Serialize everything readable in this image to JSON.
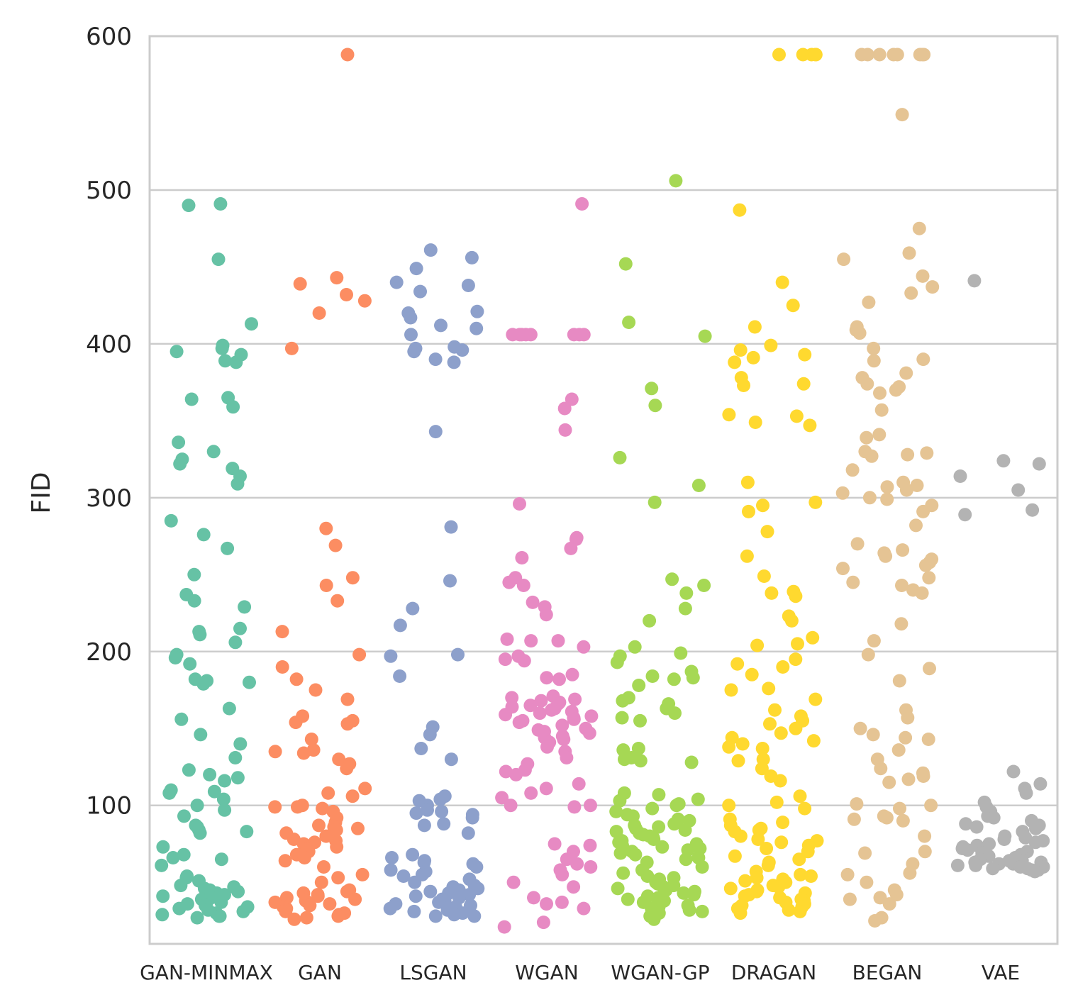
{
  "chart_data": {
    "type": "scatter",
    "subtype": "strip",
    "title": "",
    "xlabel": "",
    "ylabel": "FID",
    "ylim": [
      10,
      600
    ],
    "yticks": [
      100,
      200,
      300,
      400,
      500,
      600
    ],
    "grid": true,
    "categories": [
      "GAN-MINMAX",
      "GAN",
      "LSGAN",
      "WGAN",
      "WGAN-GP",
      "DRAGAN",
      "BEGAN",
      "VAE"
    ],
    "colors": [
      "#66c2a5",
      "#fc8d62",
      "#8da0cb",
      "#e78ac3",
      "#a6d854",
      "#ffd92f",
      "#e5c494",
      "#b3b3b3"
    ],
    "series": [
      {
        "name": "GAN-MINMAX",
        "values": [
          491,
          490,
          455,
          413,
          399,
          397,
          395,
          393,
          389,
          388,
          365,
          364,
          359,
          336,
          330,
          325,
          322,
          319,
          314,
          309,
          285,
          276,
          267,
          250,
          237,
          233,
          229,
          215,
          213,
          211,
          206,
          198,
          196,
          192,
          182,
          181,
          180,
          179,
          163,
          156,
          146,
          140,
          131,
          123,
          120,
          118,
          116,
          110,
          109,
          108,
          104,
          100,
          97,
          93,
          87,
          86,
          84,
          83,
          82,
          73,
          68,
          66,
          65,
          61,
          54,
          53,
          51,
          48,
          47,
          46,
          45,
          44,
          43,
          42,
          41,
          40,
          39,
          38,
          37,
          36,
          35,
          34,
          33,
          32,
          31,
          30,
          29,
          28,
          28,
          27
        ]
      },
      {
        "name": "GAN",
        "values": [
          588,
          443,
          439,
          432,
          428,
          420,
          397,
          280,
          269,
          248,
          243,
          233,
          213,
          198,
          190,
          182,
          175,
          169,
          158,
          155,
          154,
          153,
          143,
          136,
          135,
          134,
          130,
          127,
          124,
          111,
          108,
          106,
          100,
          99,
          99,
          98,
          96,
          92,
          89,
          87,
          86,
          85,
          84,
          82,
          80,
          78,
          77,
          76,
          75,
          73,
          72,
          70,
          68,
          66,
          64,
          60,
          55,
          53,
          50,
          45,
          44,
          43,
          42,
          41,
          40,
          39,
          38,
          37,
          36,
          35,
          34,
          33,
          32,
          31,
          30,
          29,
          28,
          27,
          26
        ]
      },
      {
        "name": "LSGAN",
        "values": [
          461,
          456,
          449,
          440,
          438,
          434,
          421,
          420,
          417,
          412,
          410,
          406,
          398,
          397,
          396,
          395,
          390,
          388,
          343,
          281,
          246,
          228,
          217,
          198,
          197,
          184,
          151,
          146,
          137,
          130,
          106,
          104,
          103,
          100,
          97,
          96,
          95,
          94,
          92,
          88,
          87,
          82,
          68,
          66,
          64,
          63,
          62,
          60,
          58,
          57,
          55,
          54,
          52,
          50,
          48,
          47,
          46,
          45,
          44,
          43,
          42,
          41,
          40,
          39,
          38,
          37,
          36,
          35,
          34,
          33,
          32,
          31,
          30,
          29,
          28,
          28
        ]
      },
      {
        "name": "WGAN",
        "values": [
          491,
          406,
          406,
          406,
          406,
          406,
          406,
          406,
          406,
          364,
          358,
          344,
          296,
          274,
          273,
          267,
          261,
          248,
          245,
          243,
          232,
          229,
          224,
          208,
          207,
          207,
          203,
          197,
          195,
          194,
          185,
          183,
          182,
          171,
          170,
          169,
          168,
          167,
          166,
          165,
          164,
          163,
          162,
          161,
          160,
          159,
          158,
          157,
          156,
          155,
          154,
          152,
          150,
          149,
          148,
          147,
          145,
          144,
          143,
          141,
          138,
          135,
          131,
          127,
          123,
          122,
          120,
          114,
          111,
          108,
          105,
          100,
          100,
          99,
          75,
          74,
          70,
          65,
          62,
          60,
          58,
          55,
          50,
          47,
          40,
          37,
          36,
          33,
          24,
          21
        ]
      },
      {
        "name": "WGAN-GP",
        "values": [
          506,
          452,
          414,
          405,
          371,
          360,
          326,
          308,
          297,
          247,
          243,
          238,
          228,
          220,
          203,
          199,
          197,
          193,
          187,
          184,
          183,
          182,
          178,
          170,
          168,
          166,
          163,
          160,
          157,
          155,
          137,
          136,
          131,
          130,
          129,
          128,
          108,
          107,
          104,
          103,
          101,
          100,
          98,
          96,
          94,
          93,
          91,
          90,
          88,
          87,
          86,
          85,
          84,
          83,
          82,
          81,
          80,
          79,
          78,
          77,
          76,
          75,
          74,
          73,
          72,
          71,
          70,
          69,
          68,
          66,
          65,
          63,
          60,
          58,
          56,
          54,
          53,
          52,
          50,
          49,
          48,
          47,
          46,
          45,
          44,
          43,
          42,
          41,
          40,
          39,
          38,
          37,
          36,
          35,
          34,
          33,
          32,
          31,
          30,
          28,
          26
        ]
      },
      {
        "name": "DRAGAN",
        "values": [
          588,
          588,
          588,
          588,
          588,
          487,
          440,
          425,
          411,
          399,
          396,
          393,
          391,
          388,
          378,
          374,
          373,
          354,
          353,
          349,
          347,
          310,
          297,
          295,
          291,
          278,
          262,
          249,
          239,
          238,
          236,
          223,
          220,
          209,
          205,
          204,
          195,
          192,
          190,
          185,
          176,
          175,
          169,
          162,
          158,
          155,
          153,
          150,
          147,
          144,
          142,
          140,
          138,
          137,
          130,
          129,
          124,
          119,
          116,
          106,
          102,
          100,
          98,
          91,
          89,
          87,
          85,
          84,
          83,
          80,
          78,
          77,
          76,
          74,
          72,
          70,
          67,
          65,
          63,
          61,
          57,
          55,
          54,
          53,
          52,
          51,
          50,
          48,
          47,
          46,
          45,
          44,
          43,
          42,
          41,
          40,
          39,
          38,
          37,
          36,
          35,
          34,
          33,
          32,
          31,
          30
        ]
      },
      {
        "name": "BEGAN",
        "values": [
          588,
          588,
          588,
          588,
          588,
          588,
          588,
          588,
          549,
          475,
          459,
          455,
          444,
          437,
          433,
          427,
          411,
          409,
          407,
          397,
          390,
          389,
          381,
          378,
          374,
          372,
          370,
          368,
          357,
          341,
          339,
          330,
          329,
          328,
          327,
          318,
          310,
          308,
          307,
          305,
          303,
          300,
          299,
          295,
          291,
          282,
          270,
          266,
          264,
          262,
          260,
          258,
          256,
          254,
          248,
          245,
          243,
          240,
          238,
          218,
          207,
          198,
          189,
          181,
          162,
          157,
          150,
          146,
          144,
          143,
          136,
          130,
          124,
          121,
          119,
          117,
          115,
          101,
          100,
          98,
          93,
          92,
          91,
          90,
          80,
          70,
          69,
          62,
          56,
          55,
          50,
          45,
          42,
          40,
          39,
          36,
          27,
          25
        ]
      },
      {
        "name": "VAE",
        "values": [
          441,
          324,
          322,
          314,
          305,
          292,
          289,
          122,
          114,
          111,
          108,
          102,
          99,
          96,
          93,
          92,
          90,
          88,
          87,
          86,
          85,
          83,
          80,
          79,
          78,
          77,
          76,
          75,
          74,
          73,
          72,
          71,
          70,
          69,
          68,
          67,
          66,
          65,
          64,
          64,
          63,
          63,
          62,
          62,
          61,
          61,
          60,
          60,
          59,
          59,
          58,
          58,
          57
        ]
      }
    ]
  }
}
